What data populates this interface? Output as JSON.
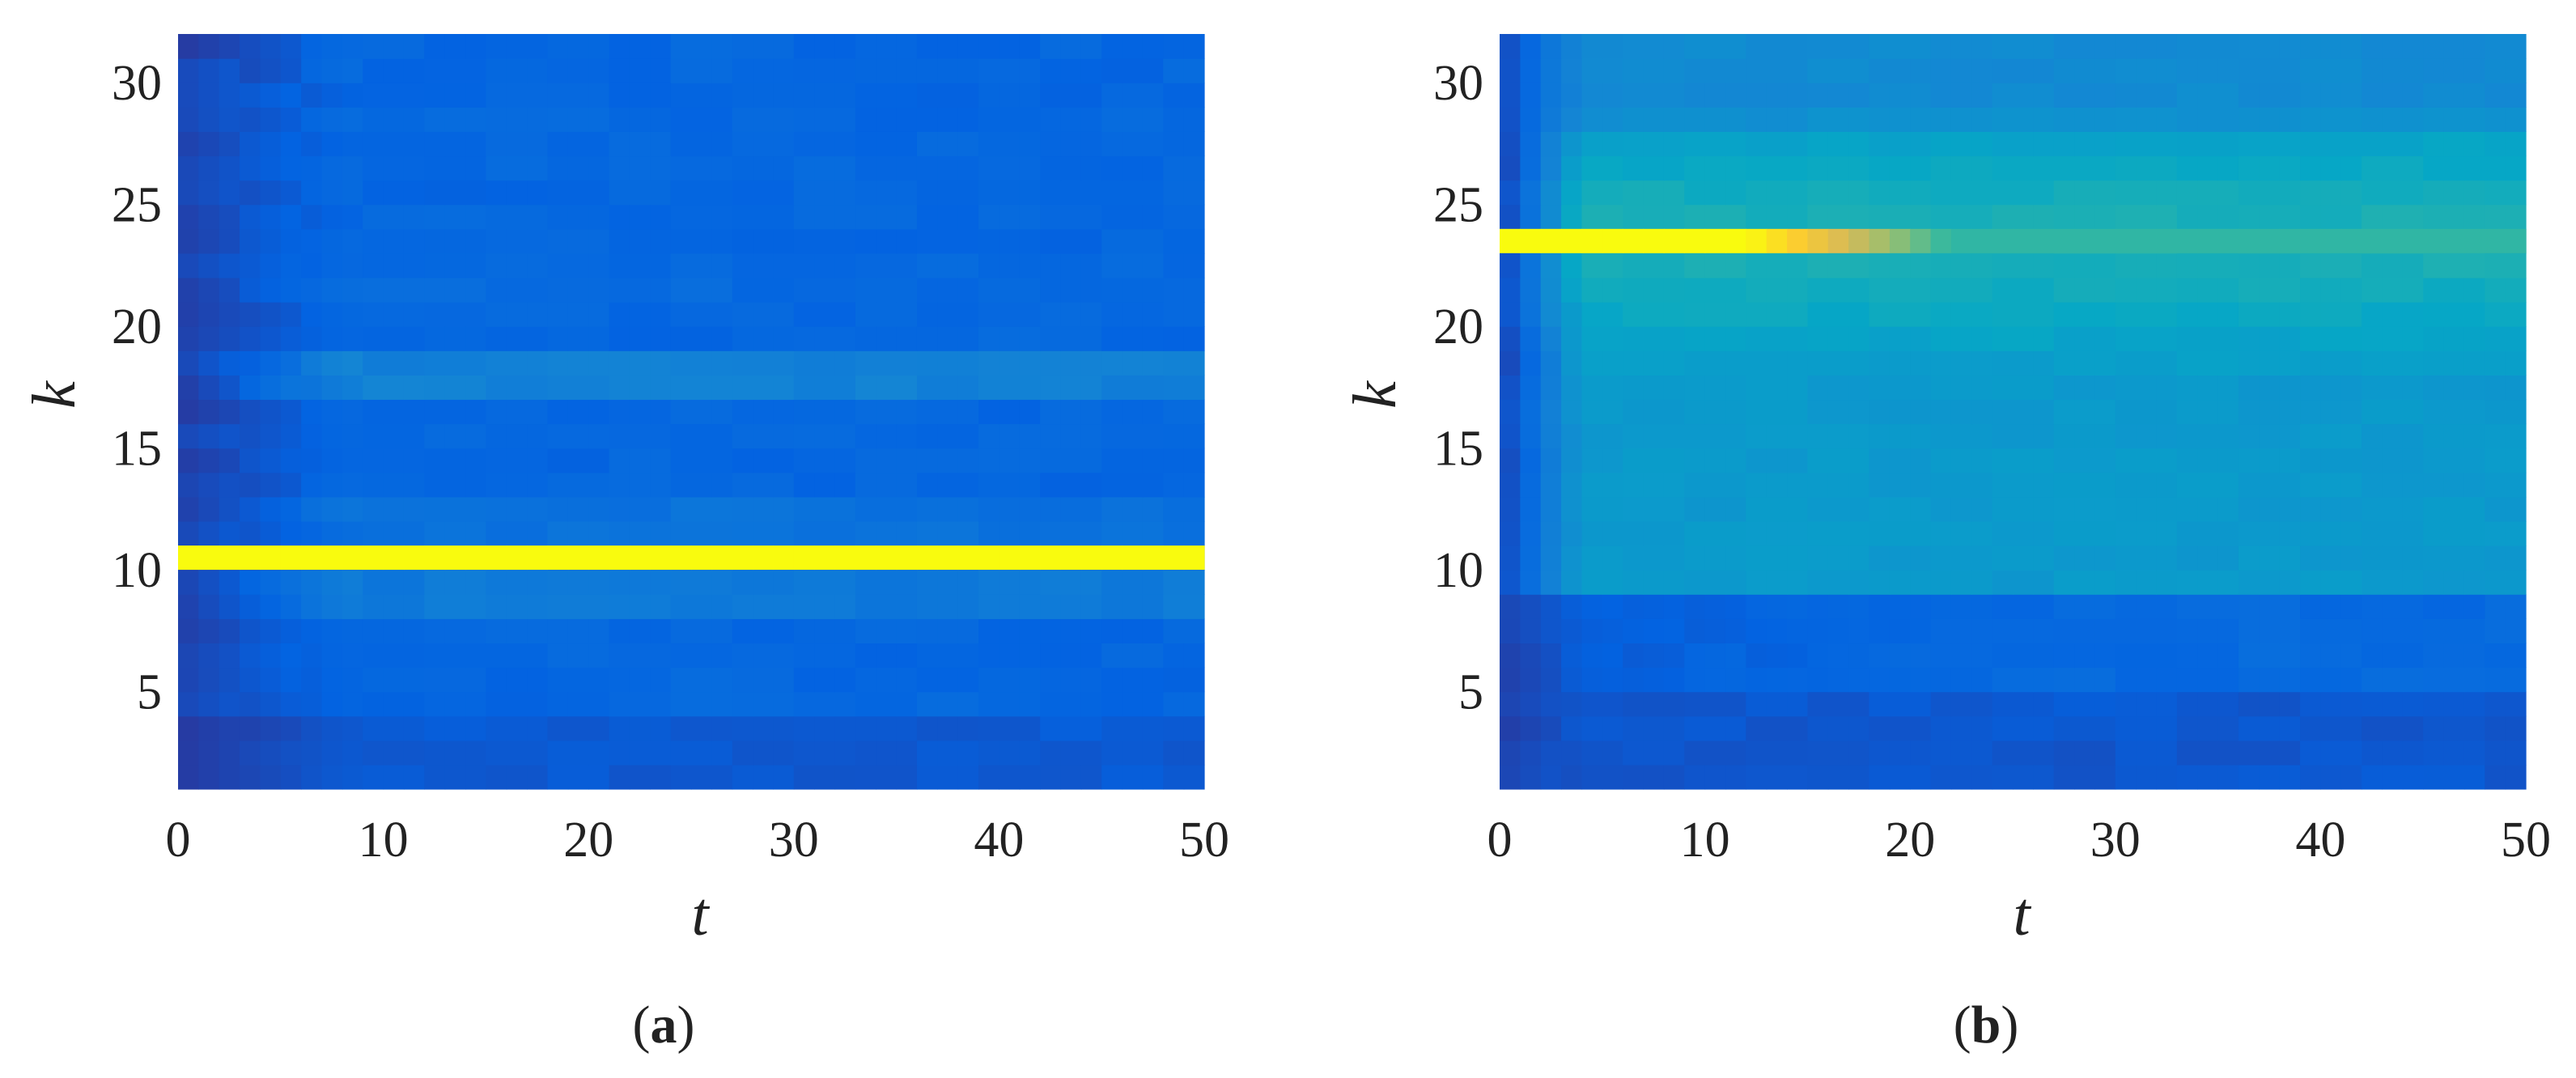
{
  "chart_data": [
    {
      "type": "heatmap",
      "panel_label": "(a)",
      "panel_letter": "a",
      "xlabel": "t",
      "ylabel": "k",
      "xlim": [
        0,
        50
      ],
      "ylim": [
        1,
        32
      ],
      "x_ticks": [
        0,
        10,
        20,
        30,
        40,
        50
      ],
      "y_ticks": [
        5,
        10,
        15,
        20,
        25,
        30
      ],
      "grid": false,
      "colormap": [
        "#352a87",
        "#0363e1",
        "#1485d4",
        "#06a7c6",
        "#38b99e",
        "#92bf73",
        "#d9ba56",
        "#fcce2e",
        "#f9fb0e"
      ],
      "time_columns": 50,
      "rows": 31,
      "highlight_row": {
        "k": 10.5,
        "intensity": 1.0
      },
      "row_bands": [
        {
          "k": 18,
          "intensity": 0.34
        },
        {
          "k": 9,
          "intensity": 0.3
        },
        {
          "k": 12,
          "intensity": 0.26
        },
        {
          "k": 22,
          "intensity": 0.22
        }
      ],
      "base_intensity": 0.14,
      "left_edge_intensity": 0.05
    },
    {
      "type": "heatmap",
      "panel_label": "(b)",
      "panel_letter": "b",
      "xlabel": "t",
      "ylabel": "k",
      "xlim": [
        0,
        50
      ],
      "ylim": [
        1,
        32
      ],
      "x_ticks": [
        0,
        10,
        20,
        30,
        40,
        50
      ],
      "y_ticks": [
        5,
        10,
        15,
        20,
        25,
        30
      ],
      "grid": false,
      "colormap": [
        "#352a87",
        "#0363e1",
        "#1485d4",
        "#06a7c6",
        "#38b99e",
        "#92bf73",
        "#d9ba56",
        "#fcce2e",
        "#f9fb0e"
      ],
      "time_columns": 50,
      "rows": 31,
      "highlight_row": {
        "k": 23.5,
        "intensity_start": 1.0,
        "intensity_end": 0.48,
        "fade_start_t": 12,
        "fade_end_t": 22
      },
      "upper_region_intensity": 0.38,
      "lower_region_intensity": 0.1,
      "region_boundary_k": 9,
      "left_edge_intensity": 0.05
    }
  ]
}
